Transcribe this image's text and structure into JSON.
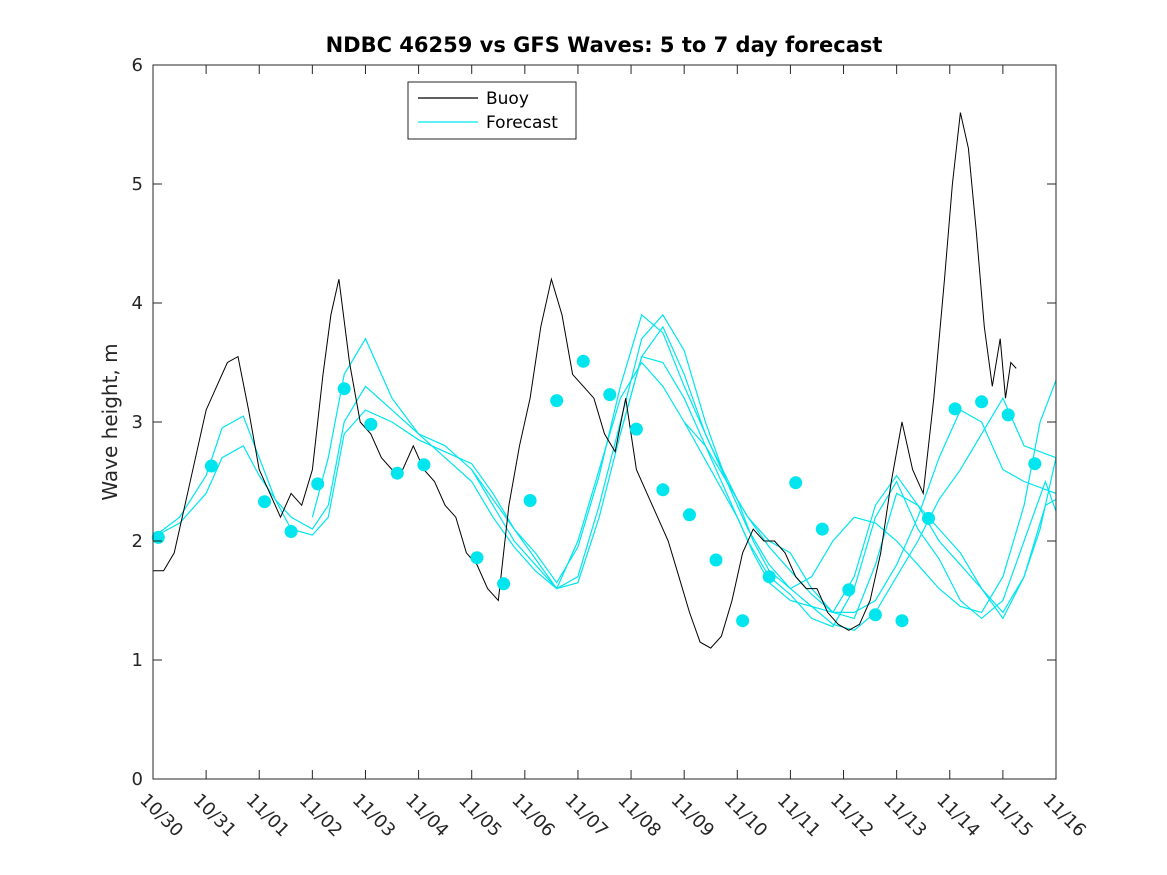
{
  "chart_data": {
    "type": "line",
    "title": "NDBC 46259 vs GFS Waves: 5 to 7 day forecast",
    "xlabel": "",
    "ylabel": "Wave height, m",
    "xlim": [
      0,
      17
    ],
    "ylim": [
      0,
      6
    ],
    "grid": false,
    "legend_position": "top-center",
    "x_unit": "days since 10/30 00:00",
    "xticks": [
      0,
      1,
      2,
      3,
      4,
      5,
      6,
      7,
      8,
      9,
      10,
      11,
      12,
      13,
      14,
      15,
      16,
      17
    ],
    "xtick_labels": [
      "10/30",
      "10/31",
      "11/01",
      "11/02",
      "11/03",
      "11/04",
      "11/05",
      "11/06",
      "11/07",
      "11/08",
      "11/09",
      "11/10",
      "11/11",
      "11/12",
      "11/13",
      "11/14",
      "11/15",
      "11/16"
    ],
    "yticks": [
      0,
      1,
      2,
      3,
      4,
      5,
      6
    ],
    "ytick_labels": [
      "0",
      "1",
      "2",
      "3",
      "4",
      "5",
      "6"
    ],
    "series": [
      {
        "name": "Buoy",
        "color": "#000000",
        "x": [
          0,
          0.2,
          0.4,
          0.6,
          0.8,
          1.0,
          1.2,
          1.4,
          1.6,
          1.8,
          2.0,
          2.2,
          2.4,
          2.6,
          2.8,
          3.0,
          3.2,
          3.35,
          3.5,
          3.7,
          3.9,
          4.1,
          4.3,
          4.5,
          4.7,
          4.9,
          5.1,
          5.3,
          5.5,
          5.7,
          5.9,
          6.1,
          6.3,
          6.5,
          6.7,
          6.9,
          7.1,
          7.3,
          7.5,
          7.7,
          7.9,
          8.1,
          8.3,
          8.5,
          8.7,
          8.9,
          9.1,
          9.3,
          9.5,
          9.7,
          9.9,
          10.1,
          10.3,
          10.5,
          10.7,
          10.9,
          11.1,
          11.3,
          11.5,
          11.7,
          11.9,
          12.1,
          12.3,
          12.5,
          12.7,
          12.9,
          13.1,
          13.3,
          13.5,
          13.7,
          13.9,
          14.1,
          14.3,
          14.5,
          14.7,
          14.9,
          15.05,
          15.2,
          15.35,
          15.5,
          15.65,
          15.8,
          15.95,
          16.05,
          16.15,
          16.25
        ],
        "y": [
          1.75,
          1.75,
          1.9,
          2.3,
          2.7,
          3.1,
          3.3,
          3.5,
          3.55,
          3.1,
          2.6,
          2.4,
          2.2,
          2.4,
          2.3,
          2.6,
          3.4,
          3.9,
          4.2,
          3.5,
          3.0,
          2.9,
          2.7,
          2.6,
          2.6,
          2.8,
          2.6,
          2.5,
          2.3,
          2.2,
          1.9,
          1.8,
          1.6,
          1.5,
          2.3,
          2.8,
          3.2,
          3.8,
          4.2,
          3.9,
          3.4,
          3.3,
          3.2,
          2.9,
          2.75,
          3.2,
          2.6,
          2.4,
          2.2,
          2.0,
          1.7,
          1.4,
          1.15,
          1.1,
          1.2,
          1.5,
          1.9,
          2.1,
          2.0,
          2.0,
          1.9,
          1.7,
          1.6,
          1.6,
          1.4,
          1.3,
          1.25,
          1.3,
          1.5,
          1.9,
          2.5,
          3.0,
          2.6,
          2.4,
          3.2,
          4.2,
          5.0,
          5.6,
          5.3,
          4.6,
          3.8,
          3.3,
          3.7,
          3.2,
          3.5,
          3.45
        ]
      },
      {
        "name": "Forecast",
        "color": "#00e5ee",
        "runs": [
          {
            "x": [
              0,
              0.5,
              1.0,
              1.3,
              1.7,
              2.0,
              2.3,
              2.6,
              3.0,
              3.3,
              3.6,
              4.0,
              4.5,
              5.0,
              5.5,
              6.0,
              6.4,
              6.8,
              7.2,
              7.6,
              8.0,
              8.4,
              8.8,
              9.2,
              9.6,
              10.0,
              10.5,
              11.0,
              11.3,
              11.6,
              12.0,
              12.4,
              12.8,
              13.2,
              13.6,
              14.0,
              14.4,
              14.8,
              15.2,
              15.6,
              16.0,
              16.4,
              17.0
            ],
            "y": [
              2.03,
              2.15,
              2.4,
              2.7,
              2.8,
              2.55,
              2.35,
              2.2,
              2.1,
              2.3,
              3.0,
              3.3,
              3.1,
              2.9,
              2.7,
              2.5,
              2.2,
              1.95,
              1.75,
              1.6,
              2.0,
              2.6,
              3.2,
              3.5,
              3.3,
              3.0,
              2.6,
              2.2,
              1.9,
              1.65,
              1.5,
              1.45,
              1.4,
              1.4,
              1.5,
              1.8,
              2.2,
              2.7,
              3.1,
              3.0,
              2.6,
              2.5,
              2.4
            ]
          },
          {
            "x": [
              0,
              0.5,
              1.0,
              1.3,
              1.7,
              2.0,
              2.3,
              2.6,
              3.0,
              3.3,
              3.6,
              4.0,
              4.5,
              5.0,
              5.5,
              6.0,
              6.4,
              6.8,
              7.2,
              7.6,
              8.0,
              8.4,
              8.8,
              9.2,
              9.6,
              10.0,
              10.5,
              11.0,
              11.3,
              11.6,
              12.0,
              12.4,
              12.8,
              13.2,
              13.6,
              14.0,
              14.4,
              14.8,
              15.2,
              15.6,
              16.0,
              16.4,
              17.0
            ],
            "y": [
              2.03,
              2.2,
              2.55,
              2.95,
              3.05,
              2.7,
              2.35,
              2.1,
              2.05,
              2.2,
              2.9,
              3.1,
              3.0,
              2.85,
              2.75,
              2.65,
              2.4,
              2.1,
              1.9,
              1.65,
              1.95,
              2.55,
              3.3,
              3.9,
              3.75,
              3.3,
              2.8,
              2.35,
              2.0,
              1.75,
              1.6,
              1.45,
              1.3,
              1.25,
              1.4,
              1.7,
              2.0,
              2.35,
              2.6,
              2.9,
              3.2,
              2.8,
              2.7
            ]
          },
          {
            "x": [
              3.0,
              3.3,
              3.6,
              4.0,
              4.5,
              5.0,
              5.5,
              6.0,
              6.4,
              6.8,
              7.2,
              7.6,
              8.0,
              8.4,
              8.8,
              9.2,
              9.6,
              10.0,
              10.4,
              10.8,
              11.2,
              11.6,
              12.0,
              12.4,
              12.8,
              13.2,
              13.6,
              14.0,
              14.4,
              14.8,
              15.2,
              15.6,
              16.0,
              16.4,
              16.7,
              17.0
            ],
            "y": [
              2.2,
              2.7,
              3.4,
              3.7,
              3.2,
              2.9,
              2.8,
              2.6,
              2.35,
              2.1,
              1.85,
              1.6,
              1.7,
              2.3,
              3.0,
              3.7,
              3.9,
              3.6,
              3.0,
              2.5,
              2.1,
              1.8,
              1.6,
              1.7,
              2.0,
              2.2,
              2.15,
              2.0,
              1.8,
              1.6,
              1.45,
              1.4,
              1.7,
              2.3,
              3.0,
              3.35
            ]
          },
          {
            "x": [
              6.0,
              6.4,
              6.8,
              7.2,
              7.6,
              8.0,
              8.4,
              8.8,
              9.2,
              9.6,
              10.0,
              10.4,
              10.8,
              11.2,
              11.6,
              12.0,
              12.4,
              12.8,
              13.2,
              13.6,
              14.0,
              14.4,
              14.8,
              15.2,
              15.6,
              16.0,
              16.4,
              16.7,
              17.0
            ],
            "y": [
              2.6,
              2.3,
              2.0,
              1.8,
              1.6,
              1.65,
              2.2,
              2.9,
              3.55,
              3.8,
              3.4,
              2.9,
              2.5,
              2.2,
              2.0,
              1.9,
              1.6,
              1.4,
              1.35,
              1.8,
              2.4,
              2.3,
              2.0,
              1.8,
              1.6,
              1.35,
              1.7,
              2.1,
              2.7
            ]
          },
          {
            "x": [
              8.8,
              9.2,
              9.6,
              10.0,
              10.4,
              10.8,
              11.2,
              11.6,
              12.0,
              12.4,
              12.8,
              13.2,
              13.6,
              14.0,
              14.4,
              14.8,
              15.2,
              15.6,
              16.0,
              16.4,
              16.8,
              17.0
            ],
            "y": [
              2.9,
              3.55,
              3.5,
              3.2,
              2.8,
              2.4,
              2.0,
              1.7,
              1.55,
              1.35,
              1.28,
              1.6,
              2.2,
              2.5,
              2.1,
              1.85,
              1.5,
              1.35,
              1.5,
              2.0,
              2.5,
              2.25
            ]
          },
          {
            "x": [
              10.0,
              10.4,
              10.8,
              11.2,
              11.6,
              12.0,
              12.4,
              12.8,
              13.2,
              13.6,
              14.0,
              14.4,
              14.8,
              15.2,
              15.6,
              16.0,
              16.4,
              16.8,
              17.0
            ],
            "y": [
              3.0,
              2.8,
              2.5,
              2.2,
              1.95,
              1.75,
              1.55,
              1.4,
              1.7,
              2.3,
              2.55,
              2.3,
              2.1,
              1.9,
              1.6,
              1.4,
              1.7,
              2.3,
              2.35
            ]
          }
        ],
        "markers": {
          "x": [
            0.1,
            1.1,
            2.1,
            2.6,
            3.1,
            3.6,
            4.1,
            4.6,
            5.1,
            6.1,
            6.6,
            7.1,
            7.6,
            8.1,
            8.6,
            9.1,
            9.6,
            10.1,
            10.6,
            11.1,
            11.6,
            12.1,
            12.6,
            13.1,
            13.6,
            14.1,
            14.6,
            15.1,
            15.6,
            16.1,
            16.6
          ],
          "y": [
            2.03,
            2.63,
            2.33,
            2.08,
            2.48,
            3.28,
            2.98,
            2.57,
            2.64,
            1.86,
            1.64,
            2.34,
            3.18,
            3.51,
            3.23,
            2.94,
            2.43,
            2.22,
            1.84,
            1.33,
            1.7,
            2.49,
            2.1,
            1.59,
            1.38,
            1.33,
            2.19,
            3.11,
            3.17,
            3.06,
            2.65
          ]
        }
      }
    ]
  }
}
